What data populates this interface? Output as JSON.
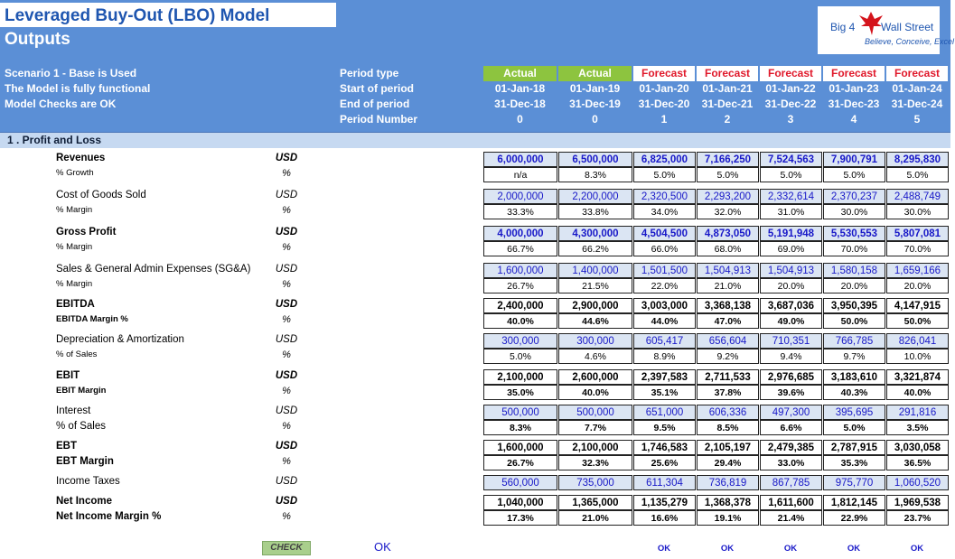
{
  "header": {
    "title": "Leveraged Buy-Out (LBO) Model",
    "subtitle": "Outputs",
    "logo": {
      "line1": "Big 4",
      "line2": "Wall Street",
      "tagline": "Believe, Conceive, Excel"
    },
    "notes": [
      "Scenario 1 - Base is Used",
      "The Model is fully functional",
      "Model Checks are OK"
    ],
    "period_labels": [
      "Period type",
      "Start of period",
      "End of period",
      "Period Number"
    ]
  },
  "periods": [
    {
      "type": "Actual",
      "start": "01-Jan-18",
      "end": "31-Dec-18",
      "num": "0"
    },
    {
      "type": "Actual",
      "start": "01-Jan-19",
      "end": "31-Dec-19",
      "num": "0"
    },
    {
      "type": "Forecast",
      "start": "01-Jan-20",
      "end": "31-Dec-20",
      "num": "1"
    },
    {
      "type": "Forecast",
      "start": "01-Jan-21",
      "end": "31-Dec-21",
      "num": "2"
    },
    {
      "type": "Forecast",
      "start": "01-Jan-22",
      "end": "31-Dec-22",
      "num": "3"
    },
    {
      "type": "Forecast",
      "start": "01-Jan-23",
      "end": "31-Dec-23",
      "num": "4"
    },
    {
      "type": "Forecast",
      "start": "01-Jan-24",
      "end": "31-Dec-24",
      "num": "5"
    }
  ],
  "section_title": "1 . Profit and Loss",
  "rows": [
    {
      "label": "Revenues",
      "unit": "USD",
      "values": [
        "6,000,000",
        "6,500,000",
        "6,825,000",
        "7,166,250",
        "7,524,563",
        "7,900,791",
        "8,295,830"
      ]
    },
    {
      "label": "% Growth",
      "unit": "%",
      "values": [
        "n/a",
        "8.3%",
        "5.0%",
        "5.0%",
        "5.0%",
        "5.0%",
        "5.0%"
      ]
    },
    {
      "label": "Cost of Goods Sold",
      "unit": "USD",
      "values": [
        "2,000,000",
        "2,200,000",
        "2,320,500",
        "2,293,200",
        "2,332,614",
        "2,370,237",
        "2,488,749"
      ]
    },
    {
      "label": "% Margin",
      "unit": "%",
      "values": [
        "33.3%",
        "33.8%",
        "34.0%",
        "32.0%",
        "31.0%",
        "30.0%",
        "30.0%"
      ]
    },
    {
      "label": "Gross Profit",
      "unit": "USD",
      "values": [
        "4,000,000",
        "4,300,000",
        "4,504,500",
        "4,873,050",
        "5,191,948",
        "5,530,553",
        "5,807,081"
      ]
    },
    {
      "label": "% Margin",
      "unit": "%",
      "values": [
        "66.7%",
        "66.2%",
        "66.0%",
        "68.0%",
        "69.0%",
        "70.0%",
        "70.0%"
      ]
    },
    {
      "label": "Sales & General Admin Expenses (SG&A)",
      "unit": "USD",
      "values": [
        "1,600,000",
        "1,400,000",
        "1,501,500",
        "1,504,913",
        "1,504,913",
        "1,580,158",
        "1,659,166"
      ]
    },
    {
      "label": "% Margin",
      "unit": "%",
      "values": [
        "26.7%",
        "21.5%",
        "22.0%",
        "21.0%",
        "20.0%",
        "20.0%",
        "20.0%"
      ]
    },
    {
      "label": "EBITDA",
      "unit": "USD",
      "values": [
        "2,400,000",
        "2,900,000",
        "3,003,000",
        "3,368,138",
        "3,687,036",
        "3,950,395",
        "4,147,915"
      ]
    },
    {
      "label": "EBITDA Margin %",
      "unit": "%",
      "values": [
        "40.0%",
        "44.6%",
        "44.0%",
        "47.0%",
        "49.0%",
        "50.0%",
        "50.0%"
      ]
    },
    {
      "label": "Depreciation & Amortization",
      "unit": "USD",
      "values": [
        "300,000",
        "300,000",
        "605,417",
        "656,604",
        "710,351",
        "766,785",
        "826,041"
      ]
    },
    {
      "label": "% of Sales",
      "unit": "%",
      "values": [
        "5.0%",
        "4.6%",
        "8.9%",
        "9.2%",
        "9.4%",
        "9.7%",
        "10.0%"
      ]
    },
    {
      "label": "EBIT",
      "unit": "USD",
      "values": [
        "2,100,000",
        "2,600,000",
        "2,397,583",
        "2,711,533",
        "2,976,685",
        "3,183,610",
        "3,321,874"
      ]
    },
    {
      "label": "EBIT Margin",
      "unit": "%",
      "values": [
        "35.0%",
        "40.0%",
        "35.1%",
        "37.8%",
        "39.6%",
        "40.3%",
        "40.0%"
      ]
    },
    {
      "label": "Interest",
      "unit": "USD",
      "values": [
        "500,000",
        "500,000",
        "651,000",
        "606,336",
        "497,300",
        "395,695",
        "291,816"
      ]
    },
    {
      "label": "% of Sales",
      "unit": "%",
      "values": [
        "8.3%",
        "7.7%",
        "9.5%",
        "8.5%",
        "6.6%",
        "5.0%",
        "3.5%"
      ]
    },
    {
      "label": "EBT",
      "unit": "USD",
      "values": [
        "1,600,000",
        "2,100,000",
        "1,746,583",
        "2,105,197",
        "2,479,385",
        "2,787,915",
        "3,030,058"
      ]
    },
    {
      "label": "EBT Margin",
      "unit": "%",
      "values": [
        "26.7%",
        "32.3%",
        "25.6%",
        "29.4%",
        "33.0%",
        "35.3%",
        "36.5%"
      ]
    },
    {
      "label": "Income Taxes",
      "unit": "USD",
      "values": [
        "560,000",
        "735,000",
        "611,304",
        "736,819",
        "867,785",
        "975,770",
        "1,060,520"
      ]
    },
    {
      "label": "Net Income",
      "unit": "USD",
      "values": [
        "1,040,000",
        "1,365,000",
        "1,135,279",
        "1,368,378",
        "1,611,600",
        "1,812,145",
        "1,969,538"
      ]
    },
    {
      "label": "Net Income Margin %",
      "unit": "%",
      "values": [
        "17.3%",
        "21.0%",
        "16.6%",
        "19.1%",
        "21.4%",
        "22.9%",
        "23.7%"
      ]
    }
  ],
  "checks": {
    "check_label": "CHECK",
    "overall": "OK",
    "periods": [
      "OK",
      "OK",
      "OK",
      "OK",
      "OK"
    ]
  },
  "colors": {
    "header_blue": "#5b8fd6",
    "actual_green": "#8dc43f",
    "forecast_red": "#e0182a",
    "input_blue": "#1818c8"
  }
}
